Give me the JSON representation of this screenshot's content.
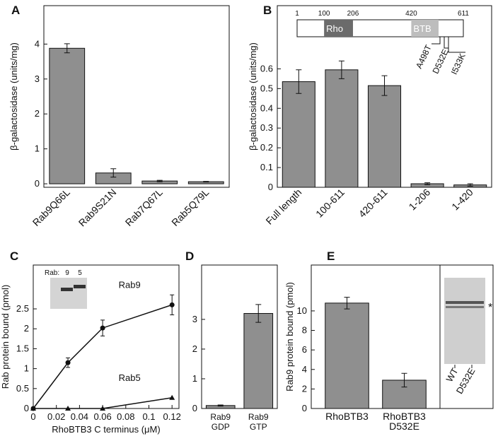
{
  "chart_data": [
    {
      "type": "bar",
      "panel": "A",
      "ylabel": "β-galactosidase (units/mg)",
      "categories": [
        [
          "Rab9Q66L"
        ],
        [
          "Rab9S21N"
        ],
        [
          "Rab7Q67L"
        ],
        [
          "Rab5Q79L"
        ]
      ],
      "values": [
        3.88,
        0.31,
        0.08,
        0.06
      ],
      "errors": [
        0.13,
        0.12,
        0.02,
        0.01
      ],
      "color": "#8f8f8f",
      "ylim": [
        -0.1,
        5.1
      ],
      "yticks": [
        0,
        1,
        2,
        3,
        4
      ],
      "label_rotation": -45
    },
    {
      "type": "bar",
      "panel": "B",
      "ylabel": "β-galactosidase (units/mg)",
      "categories": [
        [
          "Full length"
        ],
        [
          "100-611"
        ],
        [
          "420-611"
        ],
        [
          "1-206"
        ],
        [
          "1-420"
        ]
      ],
      "values": [
        0.535,
        0.595,
        0.515,
        0.018,
        0.012
      ],
      "errors": [
        0.06,
        0.045,
        0.05,
        0.005,
        0.006
      ],
      "color": "#8f8f8f",
      "ylim": [
        0,
        0.92
      ],
      "yticks": [
        0,
        0.1,
        0.2,
        0.3,
        0.4,
        0.5,
        0.6
      ],
      "label_rotation": -45,
      "domain_map": {
        "ticks": [
          1,
          100,
          206,
          420,
          611
        ],
        "domains": [
          {
            "name": "Rho",
            "start": 100,
            "end": 206,
            "color": "#6b6b6b"
          },
          {
            "name": "BTB",
            "start": 420,
            "end": 520,
            "color": "#bdbdbd"
          }
        ],
        "mutations": [
          "A498T",
          "D532E",
          "I533K"
        ]
      }
    },
    {
      "type": "line",
      "panel": "C",
      "ylabel": "Rab protein bound (pmol)",
      "xlabel": "RhoBTB3 C terminus (μM)",
      "x": [
        0,
        0.03,
        0.06,
        0.12
      ],
      "series": [
        {
          "name": "Rab9",
          "color": "#111111",
          "marker": "circle",
          "values": [
            0,
            1.15,
            2.02,
            2.6
          ],
          "errors": [
            null,
            0.12,
            0.2,
            0.25
          ]
        },
        {
          "name": "Rab5",
          "color": "#111111",
          "marker": "triangle",
          "values": [
            0,
            0,
            0,
            0.27
          ]
        }
      ],
      "xlim": [
        0,
        0.126
      ],
      "xticks": [
        0,
        0.02,
        0.04,
        0.06,
        0.08,
        0.1,
        0.12
      ],
      "ylim": [
        0,
        3.6
      ],
      "yticks": [
        0,
        0.5,
        1,
        1.5,
        2,
        2.5
      ],
      "inset": {
        "label": "Rab:",
        "lanes": [
          "9",
          "5"
        ]
      }
    },
    {
      "type": "bar",
      "panel": "D",
      "categories": [
        [
          "Rab9",
          "GDP"
        ],
        [
          "Rab9",
          "GTP"
        ]
      ],
      "values": [
        0.1,
        3.2
      ],
      "errors": [
        0.02,
        0.3
      ],
      "color": "#8f8f8f",
      "ylim": [
        0,
        4.83
      ],
      "yticks": [
        0,
        1,
        2,
        3
      ]
    },
    {
      "type": "bar",
      "panel": "E",
      "ylabel": "Rab9 protein bound (pmol)",
      "categories": [
        [
          "RhoBTB3"
        ],
        [
          "RhoBTB3",
          "D532E"
        ]
      ],
      "values": [
        10.8,
        2.9
      ],
      "errors": [
        0.6,
        0.7
      ],
      "color": "#8f8f8f",
      "ylim": [
        0,
        14.7
      ],
      "yticks": [
        0,
        2,
        4,
        6,
        8,
        10
      ],
      "gel": {
        "lanes": [
          "WT",
          "D532E"
        ],
        "marker": "*"
      }
    }
  ]
}
